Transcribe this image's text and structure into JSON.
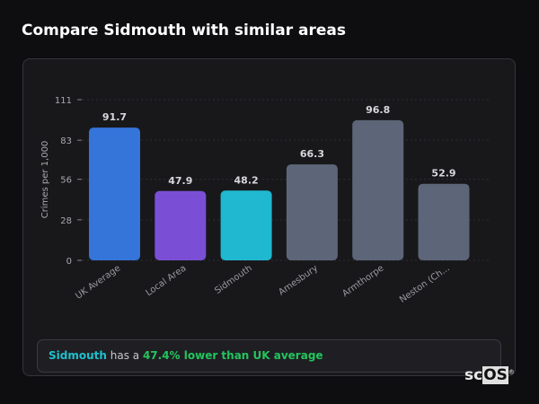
{
  "title": "Compare Sidmouth with similar areas",
  "chart_data": {
    "type": "bar",
    "ylabel": "Crimes per 1,000",
    "xlabel": "",
    "ylim": [
      0,
      111
    ],
    "yticks": [
      0,
      28,
      56,
      83,
      111
    ],
    "grid": true,
    "categories": [
      "UK Average",
      "Local Area",
      "Sidmouth",
      "Amesbury",
      "Armthorpe",
      "Neston (Ch..."
    ],
    "values": [
      91.7,
      47.9,
      48.2,
      66.3,
      96.8,
      52.9
    ],
    "value_labels": [
      "91.7",
      "47.9",
      "48.2",
      "66.3",
      "96.8",
      "52.9"
    ],
    "colors": [
      "#3574d9",
      "#7a4fd6",
      "#1fb8d0",
      "#5c6678",
      "#5c6678",
      "#5c6678"
    ]
  },
  "summary": {
    "place": "Sidmouth",
    "middle": " has a ",
    "comparison": "47.4% lower than UK average"
  },
  "logo": {
    "text_a": "sc",
    "text_b": "OS",
    "mark": "®"
  }
}
